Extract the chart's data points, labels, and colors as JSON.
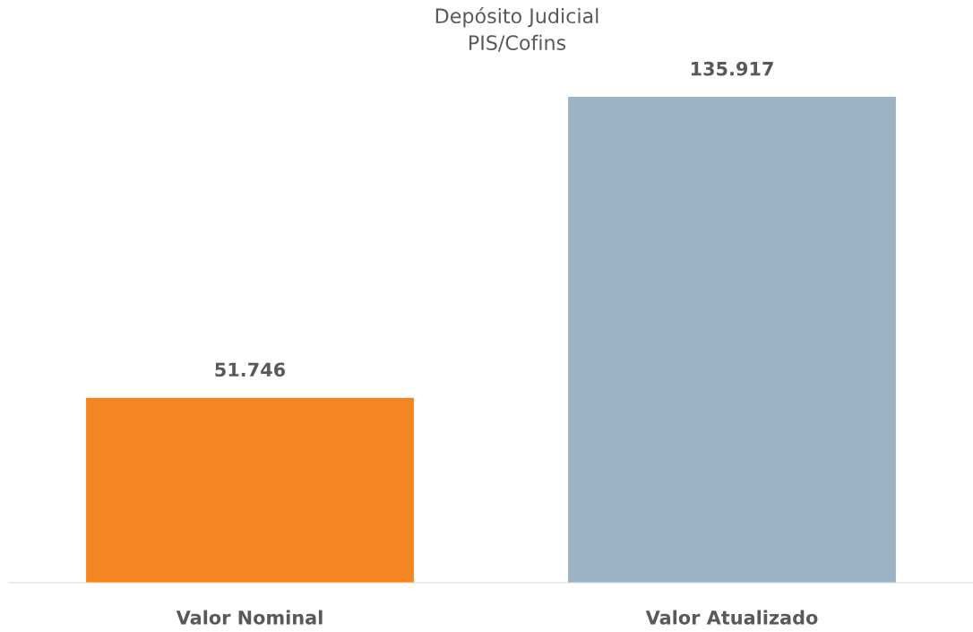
{
  "chart_data": {
    "type": "bar",
    "title": "Depósito Judicial\nPIS/Cofins",
    "categories": [
      "Valor Nominal",
      "Valor Atualizado"
    ],
    "values": [
      51746,
      135917
    ],
    "value_labels": [
      "51.746",
      "135.917"
    ],
    "colors": [
      "#f38522",
      "#9db3c3"
    ],
    "grid": false,
    "legend": false
  }
}
